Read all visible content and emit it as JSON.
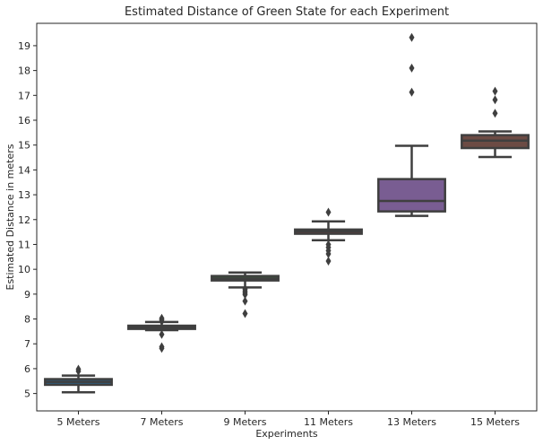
{
  "chart_data": {
    "type": "box",
    "title": "Estimated Distance of Green State for each Experiment",
    "xlabel": "Experiments",
    "ylabel": "Estimated Distance in meters",
    "ylim": [
      4.3,
      19.9
    ],
    "yticks": [
      5,
      6,
      7,
      8,
      9,
      10,
      11,
      12,
      13,
      14,
      15,
      16,
      17,
      18,
      19
    ],
    "ytick_labels": [
      "5",
      "6",
      "7",
      "8",
      "9",
      "10",
      "11",
      "12",
      "13",
      "14",
      "15",
      "16",
      "17",
      "18",
      "19"
    ],
    "grid": false,
    "categories": [
      "5 Meters",
      "7 Meters",
      "9 Meters",
      "11 Meters",
      "13 Meters",
      "15 Meters"
    ],
    "boxes": [
      {
        "category": "5 Meters",
        "whisker_low": 5.05,
        "q1": 5.35,
        "median": 5.47,
        "q3": 5.58,
        "whisker_high": 5.72,
        "outliers": [
          5.9,
          5.98
        ],
        "color": "#3274a1"
      },
      {
        "category": "7 Meters",
        "whisker_low": 7.55,
        "q1": 7.6,
        "median": 7.67,
        "q3": 7.73,
        "whisker_high": 7.88,
        "outliers": [
          6.82,
          6.88,
          7.38,
          7.9,
          7.97,
          8.03
        ],
        "color": "#3a923a"
      },
      {
        "category": "9 Meters",
        "whisker_low": 9.27,
        "q1": 9.55,
        "median": 9.63,
        "q3": 9.73,
        "whisker_high": 9.87,
        "outliers": [
          8.22,
          8.72,
          8.98,
          9.05,
          9.12,
          9.2
        ],
        "color": "#3a923a"
      },
      {
        "category": "11 Meters",
        "whisker_low": 11.17,
        "q1": 11.43,
        "median": 11.52,
        "q3": 11.6,
        "whisker_high": 11.93,
        "outliers": [
          10.33,
          10.62,
          10.75,
          10.88,
          11.0,
          12.3
        ],
        "color": "#c03d3e"
      },
      {
        "category": "13 Meters",
        "whisker_low": 12.15,
        "q1": 12.33,
        "median": 12.75,
        "q3": 13.63,
        "whisker_high": 14.97,
        "outliers": [
          17.13,
          18.1,
          19.33
        ],
        "color": "#9372b2"
      },
      {
        "category": "15 Meters",
        "whisker_low": 14.52,
        "q1": 14.88,
        "median": 15.18,
        "q3": 15.4,
        "whisker_high": 15.55,
        "outliers": [
          16.28,
          16.82,
          17.17
        ],
        "color": "#845b53"
      }
    ]
  }
}
